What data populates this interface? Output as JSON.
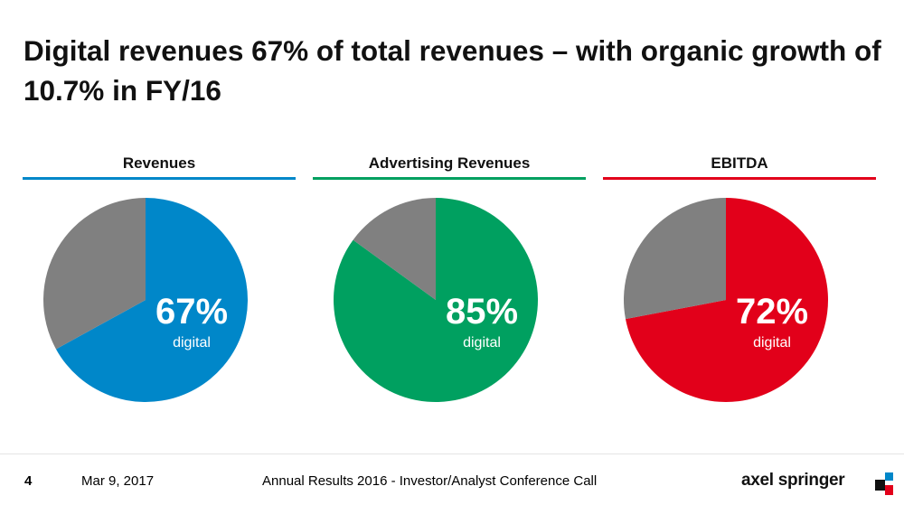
{
  "title": "Digital revenues 67% of total revenues – with organic growth of 10.7% in FY/16",
  "colors": {
    "revenues": "#0087c9",
    "advertising": "#00a060",
    "ebitda": "#e2001a",
    "remainder": "#808080"
  },
  "chart_data": [
    {
      "type": "pie",
      "title": "Revenues",
      "slices": [
        {
          "name": "digital",
          "value": 67,
          "color": "#0087c9"
        },
        {
          "name": "",
          "value": 33,
          "color": "#808080"
        }
      ],
      "label_value": "67%",
      "label_text": "digital"
    },
    {
      "type": "pie",
      "title": "Advertising Revenues",
      "slices": [
        {
          "name": "digital",
          "value": 85,
          "color": "#00a060"
        },
        {
          "name": "",
          "value": 15,
          "color": "#808080"
        }
      ],
      "label_value": "85%",
      "label_text": "digital"
    },
    {
      "type": "pie",
      "title": "EBITDA",
      "slices": [
        {
          "name": "digital",
          "value": 72,
          "color": "#e2001a"
        },
        {
          "name": "",
          "value": 28,
          "color": "#808080"
        }
      ],
      "label_value": "72%",
      "label_text": "digital"
    }
  ],
  "footer": {
    "page": "4",
    "date": "Mar 9, 2017",
    "event": "Annual Results 2016 - Investor/Analyst Conference Call",
    "logo": "axel springer"
  }
}
